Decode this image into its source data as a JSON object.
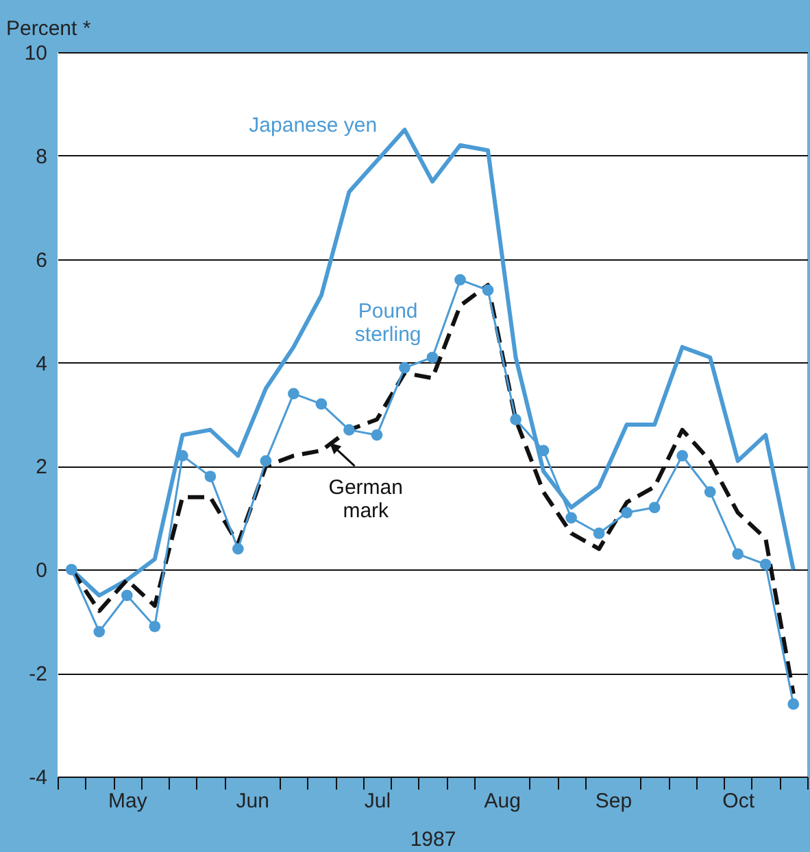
{
  "chart_data": {
    "type": "line",
    "xlabel": "1987",
    "ylabel": "Percent *",
    "x": [
      "1987-05-01",
      "1987-05-08",
      "1987-05-15",
      "1987-05-22",
      "1987-05-29",
      "1987-06-05",
      "1987-06-12",
      "1987-06-19",
      "1987-06-26",
      "1987-07-03",
      "1987-07-10",
      "1987-07-17",
      "1987-07-24",
      "1987-07-31",
      "1987-08-07",
      "1987-08-14",
      "1987-08-21",
      "1987-08-28",
      "1987-09-04",
      "1987-09-11",
      "1987-09-18",
      "1987-09-25",
      "1987-10-02",
      "1987-10-09",
      "1987-10-16",
      "1987-10-23",
      "1987-10-30"
    ],
    "series": [
      {
        "name": "Japanese yen",
        "color": "#4b9bd5",
        "line_style": "solid",
        "marker": "none",
        "values": [
          0,
          -0.5,
          -0.2,
          0.2,
          2.6,
          2.7,
          2.2,
          3.5,
          4.3,
          5.3,
          7.3,
          7.9,
          8.5,
          7.5,
          8.2,
          8.1,
          4.1,
          1.9,
          1.2,
          1.6,
          2.8,
          2.8,
          4.3,
          4.1,
          2.1,
          2.6,
          0
        ]
      },
      {
        "name": "Pound sterling",
        "color": "#4b9bd5",
        "line_style": "solid",
        "marker": "circle",
        "values": [
          0,
          -1.2,
          -0.5,
          -1.1,
          2.2,
          1.8,
          0.4,
          2.1,
          3.4,
          3.2,
          2.7,
          2.6,
          3.9,
          4.1,
          5.6,
          5.4,
          2.9,
          2.3,
          1.0,
          0.7,
          1.1,
          1.2,
          2.2,
          1.5,
          0.3,
          0.1,
          -2.6
        ]
      },
      {
        "name": "German mark",
        "color": "#111111",
        "line_style": "dashed",
        "marker": "none",
        "values": [
          0,
          -0.8,
          -0.2,
          -0.7,
          1.4,
          1.4,
          0.5,
          2.0,
          2.2,
          2.3,
          2.7,
          2.9,
          3.8,
          3.7,
          5.1,
          5.5,
          2.9,
          1.5,
          0.7,
          0.4,
          1.3,
          1.6,
          2.7,
          2.1,
          1.1,
          0.6,
          -2.4
        ]
      }
    ],
    "xlim": [
      "1987-04-27T12:00",
      "1987-11-02T12:00"
    ],
    "xticks": [
      {
        "value": "1987-04-27T12:00",
        "label": null
      },
      {
        "value": "1987-05-04T12:00",
        "label": null
      },
      {
        "value": "1987-05-11T12:00",
        "label": null
      },
      {
        "value": "1987-05-15",
        "label": "May"
      },
      {
        "value": "1987-05-18T12:00",
        "label": null
      },
      {
        "value": "1987-05-25T12:00",
        "label": null
      },
      {
        "value": "1987-06-01T12:00",
        "label": null
      },
      {
        "value": "1987-06-08T12:00",
        "label": null
      },
      {
        "value": "1987-06-15T12:00",
        "label": "Jun"
      },
      {
        "value": "1987-06-22T12:00",
        "label": null
      },
      {
        "value": "1987-06-29T12:00",
        "label": null
      },
      {
        "value": "1987-07-06T12:00",
        "label": null
      },
      {
        "value": "1987-07-13T12:00",
        "label": null
      },
      {
        "value": "1987-07-17",
        "label": "Jul"
      },
      {
        "value": "1987-07-20T12:00",
        "label": null
      },
      {
        "value": "1987-07-27T12:00",
        "label": null
      },
      {
        "value": "1987-08-03T12:00",
        "label": null
      },
      {
        "value": "1987-08-10T12:00",
        "label": null
      },
      {
        "value": "1987-08-17T12:00",
        "label": "Aug"
      },
      {
        "value": "1987-08-24T12:00",
        "label": null
      },
      {
        "value": "1987-08-31T12:00",
        "label": null
      },
      {
        "value": "1987-09-07T12:00",
        "label": null
      },
      {
        "value": "1987-09-14T12:00",
        "label": "Sep"
      },
      {
        "value": "1987-09-21T12:00",
        "label": null
      },
      {
        "value": "1987-09-28T12:00",
        "label": null
      },
      {
        "value": "1987-10-05T12:00",
        "label": null
      },
      {
        "value": "1987-10-12T12:00",
        "label": null
      },
      {
        "value": "1987-10-16",
        "label": "Oct"
      },
      {
        "value": "1987-10-19T12:00",
        "label": null
      },
      {
        "value": "1987-10-26T12:00",
        "label": null
      },
      {
        "value": "1987-11-02T12:00",
        "label": null
      }
    ],
    "ylim": [
      -4,
      10
    ],
    "yticks": [
      -4,
      -2,
      0,
      2,
      4,
      6,
      8,
      10
    ],
    "grid": "y"
  }
}
